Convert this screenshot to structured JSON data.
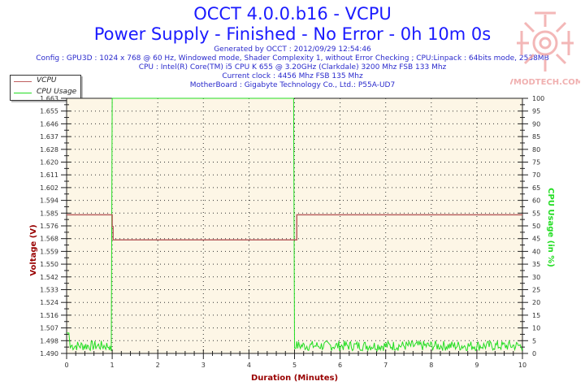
{
  "header": {
    "title": "OCCT 4.0.0.b16 - VCPU",
    "subtitle": "Power Supply - Finished - No Error - 0h 10m 0s",
    "info_lines": [
      "Generated by OCCT : 2012/09/29 12:54:46",
      "Config : GPU3D : 1024 x 768 @ 60 Hz, Windowed mode, Shader Complexity 1, without Error Checking ; CPU:Linpack : 64bits mode, 2538MB",
      "CPU : Intel(R) Core(TM) i5 CPU K 655 @ 3.20GHz (Clarkdale) 3200 Mhz FSB 133 Mhz",
      "Current clock : 4456 Mhz FSB 135 Mhz",
      "MotherBoard : Gigabyte Technology Co., Ltd.: P55A-UD7"
    ]
  },
  "watermark": {
    "text": "VMODTECH.COM"
  },
  "legend": {
    "items": [
      {
        "label": "VCPU",
        "color": "#c06060"
      },
      {
        "label": "CPU Usage",
        "color": "#22dd22"
      }
    ]
  },
  "axes": {
    "x_label": "Duration (Minutes)",
    "y_left_label": "Voltage (V)",
    "y_right_label": "CPU Usage (in %)"
  },
  "colors": {
    "plot_bg": "#fdf6e6",
    "vcpu": "#b86060",
    "cpu_usage": "#22dd22",
    "axis_label": "#990000",
    "right_axis_label": "#22dd22",
    "title": "#1a1aff"
  },
  "chart_data": {
    "type": "line",
    "title": "OCCT 4.0.0.b16 - VCPU",
    "subtitle": "Power Supply - Finished - No Error - 0h 10m 0s",
    "xlabel": "Duration (Minutes)",
    "ylabel": "Voltage (V)",
    "y2label": "CPU Usage (in %)",
    "xlim": [
      0,
      10
    ],
    "ylim": [
      1.49,
      1.663
    ],
    "y2lim": [
      0,
      100
    ],
    "x_ticks": [
      "0",
      "1",
      "2",
      "3",
      "4",
      "5",
      "6",
      "7",
      "8",
      "9",
      "10"
    ],
    "y_ticks": [
      "1.490",
      "1.498",
      "1.507",
      "1.516",
      "1.524",
      "1.533",
      "1.542",
      "1.550",
      "1.559",
      "1.568",
      "1.576",
      "1.585",
      "1.594",
      "1.602",
      "1.611",
      "1.620",
      "1.628",
      "1.637",
      "1.646",
      "1.655",
      "1.663"
    ],
    "y2_ticks": [
      "0",
      "5",
      "10",
      "15",
      "20",
      "25",
      "30",
      "35",
      "40",
      "45",
      "50",
      "55",
      "60",
      "65",
      "70",
      "75",
      "80",
      "85",
      "90",
      "95",
      "100"
    ],
    "grid": true,
    "legend_position": "top-left outside",
    "series": [
      {
        "name": "VCPU",
        "axis": "left",
        "x": [
          0,
          1.0,
          1.0,
          1.02,
          1.02,
          4.98,
          4.98,
          5.05,
          5.05,
          10
        ],
        "values": [
          1.584,
          1.584,
          1.576,
          1.576,
          1.567,
          1.567,
          1.567,
          1.567,
          1.584,
          1.584
        ]
      },
      {
        "name": "CPU Usage",
        "axis": "right",
        "x": [
          0,
          0.05,
          0.08,
          0.95,
          0.98,
          1.0,
          1.02,
          4.95,
          4.98,
          5.0,
          5.03,
          10
        ],
        "values": [
          8,
          8,
          2,
          3,
          1,
          100,
          100,
          100,
          100,
          2,
          2,
          2
        ]
      }
    ]
  }
}
